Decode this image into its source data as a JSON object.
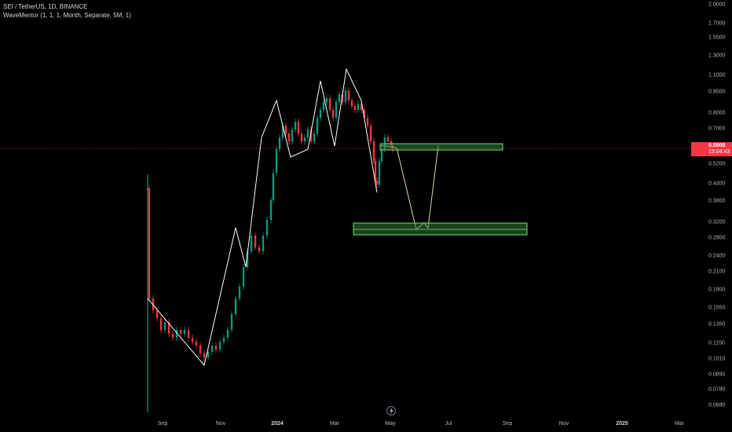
{
  "legend": {
    "symbol_line": "SEI / TetherUS, 1D, BINANCE",
    "indicator_line": "WaveMentor (1, 1, 1, Month, Separate, 5M, 1)"
  },
  "price_axis": {
    "ticks": [
      "2.0000",
      "1.7000",
      "1.5000",
      "1.3000",
      "1.1000",
      "0.9500",
      "0.8000",
      "0.7000",
      "0.5200",
      "0.4400",
      "0.3800",
      "0.3200",
      "0.2800",
      "0.2400",
      "0.2100",
      "0.1800",
      "0.1550",
      "0.1350",
      "0.1150",
      "0.1010",
      "0.0890",
      "0.0780",
      "0.0680"
    ],
    "current_price": "0.5908",
    "countdown": "13:04:43"
  },
  "time_axis": {
    "ticks": [
      "Sep",
      "Nov",
      "2024",
      "Mar",
      "May",
      "Jul",
      "Sep",
      "Nov",
      "2025",
      "Mar"
    ]
  },
  "colors": {
    "background": "#000000",
    "up": "#089981",
    "down": "#f23645",
    "wave_line": "#ffffff",
    "projection": "#e6d7a8",
    "zone_fill": "#2e7d32",
    "zone_border": "#7bd77f",
    "price_line": "#f23645"
  },
  "icons": {
    "replay": "lightning-icon"
  }
}
